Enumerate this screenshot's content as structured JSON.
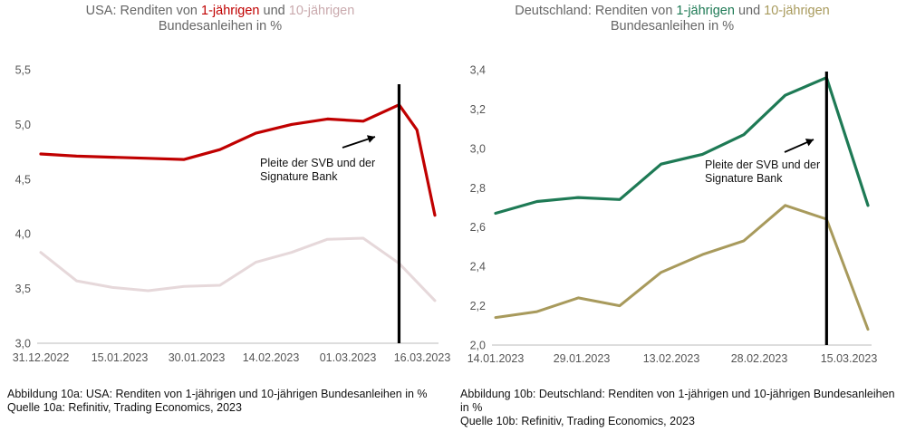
{
  "chart_data": [
    {
      "type": "line",
      "title_parts": [
        {
          "text": "USA: Renditen von ",
          "color": "#666666"
        },
        {
          "text": "1-jährigen",
          "color": "#c00000"
        },
        {
          "text": " und ",
          "color": "#666666"
        },
        {
          "text": "10-jährigen",
          "color": "#c9a9ad"
        }
      ],
      "title_line2": "Bundesanleihen in %",
      "x_ticks": [
        "31.12.2022",
        "15.01.2023",
        "30.01.2023",
        "14.02.2023",
        "01.03.2023",
        "16.03.2023"
      ],
      "y_ticks": [
        "3,0",
        "3,5",
        "4,0",
        "4,5",
        "5,0",
        "5,5"
      ],
      "ylim": [
        3.0,
        5.5
      ],
      "x_range": [
        0,
        11
      ],
      "series": [
        {
          "color": "#c00000",
          "width": 3.2,
          "x": [
            0,
            1,
            2,
            3,
            4,
            5,
            6,
            7,
            8,
            9,
            10,
            10.5,
            11
          ],
          "values": [
            4.73,
            4.71,
            4.7,
            4.69,
            4.68,
            4.77,
            4.92,
            5.0,
            5.05,
            5.03,
            5.18,
            4.95,
            4.17
          ]
        },
        {
          "color": "#e6d8da",
          "width": 3.0,
          "x": [
            0,
            1,
            2,
            3,
            4,
            5,
            6,
            7,
            8,
            9,
            10,
            11
          ],
          "values": [
            3.83,
            3.57,
            3.51,
            3.48,
            3.52,
            3.53,
            3.74,
            3.83,
            3.95,
            3.96,
            3.73,
            3.39
          ]
        }
      ],
      "event_x": 10,
      "annotation": [
        "Pleite der SVB und der",
        "Signature Bank"
      ],
      "caption_line1": "Abbildung 10a: USA: Renditen von 1-jährigen und 10-jährigen Bundesanleihen in %",
      "caption_line2": "Quelle 10a: Refinitiv, Trading Economics, 2023"
    },
    {
      "type": "line",
      "title_parts": [
        {
          "text": "Deutschland: Renditen von ",
          "color": "#666666"
        },
        {
          "text": "1-jährigen",
          "color": "#1e7a55"
        },
        {
          "text": " und ",
          "color": "#666666"
        },
        {
          "text": "10-jährigen",
          "color": "#a89a5c"
        }
      ],
      "title_line2": "Bundesanleihen in %",
      "x_ticks": [
        "14.01.2023",
        "29.01.2023",
        "13.02.2023",
        "28.02.2023",
        "15.03.2023"
      ],
      "y_ticks": [
        "2,0",
        "2,2",
        "2,4",
        "2,6",
        "2,8",
        "3,0",
        "3,2",
        "3,4"
      ],
      "ylim": [
        2.0,
        3.4
      ],
      "x_range": [
        0,
        9
      ],
      "series": [
        {
          "color": "#1e7a55",
          "width": 3.2,
          "x": [
            0,
            1,
            2,
            3,
            4,
            5,
            6,
            7,
            8,
            9
          ],
          "values": [
            2.67,
            2.73,
            2.75,
            2.74,
            2.92,
            2.97,
            3.07,
            3.27,
            3.36,
            2.71
          ]
        },
        {
          "color": "#a89a5c",
          "width": 3.0,
          "x": [
            0,
            1,
            2,
            3,
            4,
            5,
            6,
            7,
            8,
            9
          ],
          "values": [
            2.14,
            2.17,
            2.24,
            2.2,
            2.37,
            2.46,
            2.53,
            2.71,
            2.64,
            2.08
          ]
        }
      ],
      "event_x": 8,
      "annotation": [
        "Pleite der SVB und der",
        "Signature Bank"
      ],
      "caption_line1": "Abbildung 10b: Deutschland: Renditen von 1-jährigen und 10-jährigen Bundesanleihen in %",
      "caption_line2": "Quelle 10b: Refinitiv,  Trading Economics, 2023"
    }
  ]
}
